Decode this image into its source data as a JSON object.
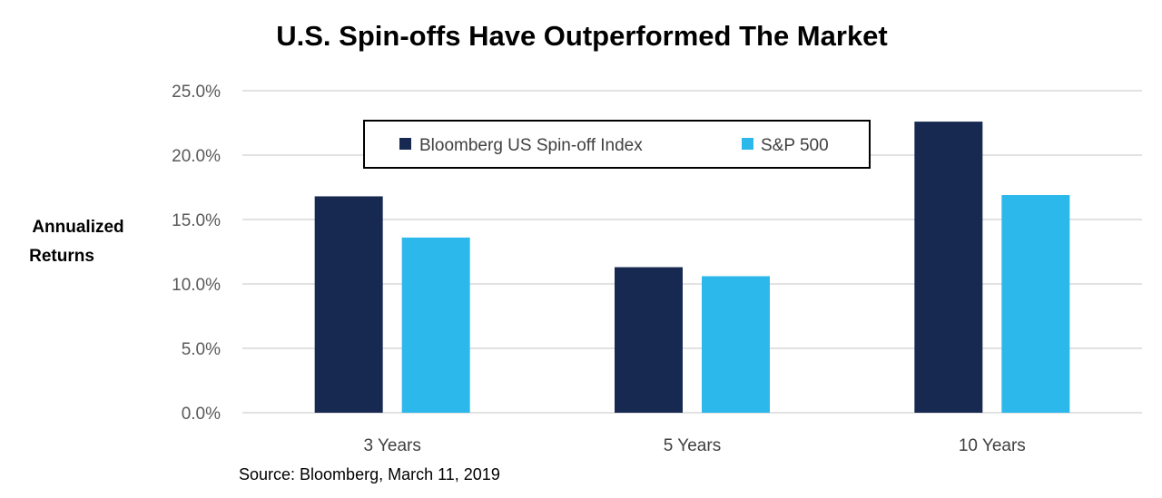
{
  "chart_data": {
    "type": "bar",
    "title": "U.S. Spin-offs Have Outperformed The Market",
    "ylabel_lines": [
      "Annualized",
      "Returns"
    ],
    "xlabel": "",
    "categories": [
      "3 Years",
      "5 Years",
      "10 Years"
    ],
    "series": [
      {
        "name": "Bloomberg US Spin-off Index",
        "color": "#172951",
        "values": [
          16.8,
          11.3,
          22.6
        ]
      },
      {
        "name": "S&P 500",
        "color": "#2DB8EC",
        "values": [
          13.6,
          10.6,
          16.9
        ]
      }
    ],
    "ylim": [
      0,
      25
    ],
    "yticks": [
      0,
      5,
      10,
      15,
      20,
      25
    ],
    "ytick_labels": [
      "0.0%",
      "5.0%",
      "10.0%",
      "15.0%",
      "20.0%",
      "25.0%"
    ],
    "grid": true,
    "legend_position": "top-center",
    "source": "Source: Bloomberg, March 11, 2019",
    "gridline_color": "#D9D9D9",
    "text_color": "#595959"
  }
}
